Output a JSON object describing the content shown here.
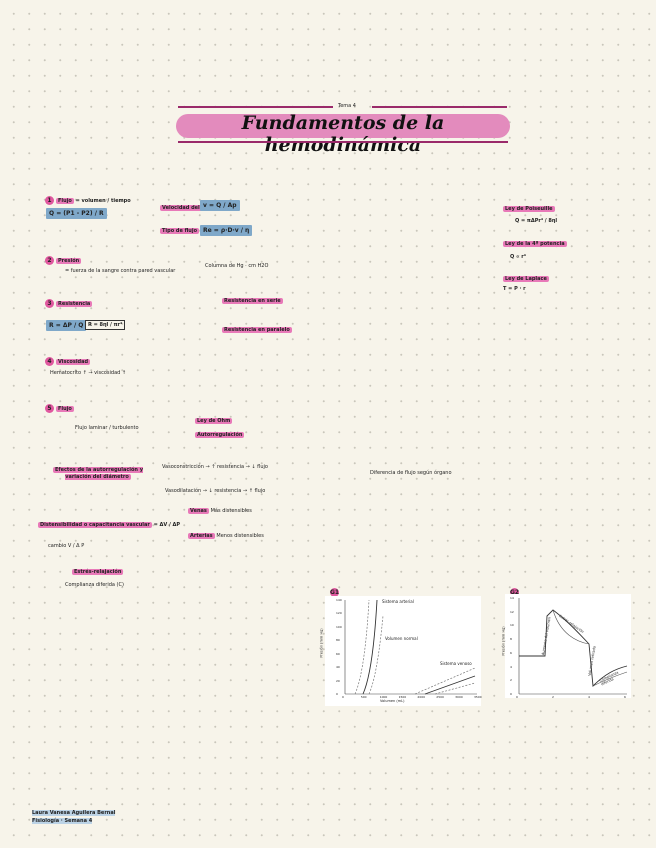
{
  "header": {
    "topic": "Tema 4",
    "title": "Fundamentos de la hemodinámica"
  },
  "sections": [
    {
      "num": "1",
      "title": "Flujo",
      "note": "= volumen / tiempo",
      "formula": "Q = (P1 - P2) / R",
      "branch_a": "Velocidad del flujo",
      "branch_a_formula": "v = Q / Ap",
      "branch_b": "Tipo de flujo",
      "branch_b_formula": "Re = ρ·D·v / η"
    },
    {
      "num": "2",
      "title": "Presión",
      "note": "= fuerza de la sangre contra pared vascular",
      "sub": "Columna de Hg · cm H2O"
    },
    {
      "num": "3",
      "title": "Resistencia",
      "formula_a": "R = ΔP / Q",
      "formula_b": "R = 8ηl / πr⁴",
      "branch_a": "Resistencia en serie",
      "branch_b": "Resistencia en paralelo"
    },
    {
      "num": "4",
      "title": "Viscosidad",
      "note": "Hematocrito ↑ → viscosidad ↑"
    },
    {
      "num": "5",
      "title": "Flujo",
      "note": "Flujo laminar / turbulento",
      "branch_a": "Ley de Ohm",
      "branch_b": "Autorregulación"
    }
  ],
  "effects": {
    "title": "Efectos de la autorregulación y variación del diámetro",
    "a": "Vasoconstricción → ↑ resistencia → ↓ flujo",
    "b": "Vasodilatación → ↓ resistencia → ↑ flujo",
    "result": "Diferencia de flujo según órgano"
  },
  "distensibility": {
    "title": "Distensibilidad o capacitancia vascular",
    "formula": "= ΔV / ΔP",
    "note": "cambio V / Δ P",
    "a": "Venas",
    "b": "Arterias",
    "a_note": "Más distensibles",
    "b_note": "Menos distensibles"
  },
  "stress": {
    "title": "Estrés-relajación",
    "note": "Complianza diferida (C)"
  },
  "laws": [
    {
      "title": "Ley de Poiseuille",
      "formula": "Q = πΔPr⁴ / 8ηl"
    },
    {
      "title": "Ley de la 4ª potencia",
      "formula": "Q ∝ r⁴"
    },
    {
      "title": "Ley de Laplace",
      "formula": "T = P · r"
    }
  ],
  "graphs": [
    {
      "badge": "G1",
      "ylabel": "Presión (mm Hg)",
      "xlabel": "Volumen (mL)",
      "labels": [
        "Sistema arterial",
        "Volumen normal",
        "Sistema venoso"
      ],
      "yticks": [
        "0",
        "20",
        "40",
        "60",
        "80",
        "100",
        "120",
        "140"
      ],
      "xticks": [
        "0",
        "500",
        "1000",
        "1500",
        "2000",
        "2500",
        "3000",
        "3500"
      ]
    },
    {
      "badge": "G2",
      "ylabel": "Presión (mm Hg)",
      "labels": [
        "Aumento del volumen",
        "Estrés-relajación",
        "Volumen retirado",
        "Complianza diferida"
      ],
      "yticks": [
        "0",
        "2",
        "4",
        "6",
        "8",
        "10",
        "12",
        "14"
      ],
      "xticks": [
        "0",
        "2",
        "4",
        "6"
      ]
    }
  ],
  "footer": {
    "line1": "Laura Vanesa Aguilera Bernal",
    "line2": "Fisiología · Semana 4"
  },
  "colors": {
    "highlight": "#e879b8",
    "formula_box": "#7fa8c9",
    "line": "#9a2a6a"
  }
}
